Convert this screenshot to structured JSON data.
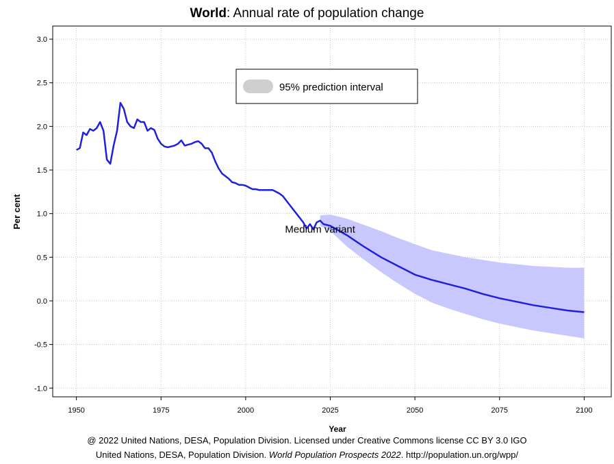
{
  "chart_data": {
    "type": "line",
    "title": {
      "region": "World",
      "separator": ":",
      "text": " Annual rate of population change"
    },
    "xlabel": "Year",
    "ylabel": "Per cent",
    "xlim": [
      1943,
      2108
    ],
    "ylim": [
      -1.1,
      3.15
    ],
    "x_ticks": [
      1950,
      1975,
      2000,
      2025,
      2050,
      2075,
      2100
    ],
    "y_ticks": [
      -1.0,
      -0.5,
      0.0,
      0.5,
      1.0,
      1.5,
      2.0,
      2.5,
      3.0
    ],
    "y_tick_labels": [
      "-1.0",
      "-0.5",
      "0.0",
      "0.5",
      "1.0",
      "1.5",
      "2.0",
      "2.5",
      "3.0"
    ],
    "grid": true,
    "colors": {
      "line": "#1f1fe0",
      "band": "#c8c8ff",
      "legend_swatch": "#cfcfcf",
      "grid": "#c8c8c8"
    },
    "legend": {
      "position": "top-center",
      "entries": [
        {
          "label": "95% prediction interval"
        }
      ]
    },
    "annotation": {
      "text": "Medium variant",
      "x": 2022,
      "y": 0.82
    },
    "series": [
      {
        "name": "Medium variant",
        "x": [
          1950,
          1951,
          1952,
          1953,
          1954,
          1955,
          1956,
          1957,
          1958,
          1959,
          1960,
          1961,
          1962,
          1963,
          1964,
          1965,
          1966,
          1967,
          1968,
          1969,
          1970,
          1971,
          1972,
          1973,
          1974,
          1975,
          1976,
          1977,
          1978,
          1979,
          1980,
          1981,
          1982,
          1983,
          1984,
          1985,
          1986,
          1987,
          1988,
          1989,
          1990,
          1991,
          1992,
          1993,
          1994,
          1995,
          1996,
          1997,
          1998,
          1999,
          2000,
          2001,
          2002,
          2003,
          2004,
          2005,
          2006,
          2007,
          2008,
          2009,
          2010,
          2011,
          2012,
          2013,
          2014,
          2015,
          2016,
          2017,
          2018,
          2019,
          2020,
          2021,
          2022,
          2023,
          2025,
          2030,
          2035,
          2040,
          2045,
          2050,
          2055,
          2060,
          2065,
          2070,
          2075,
          2080,
          2085,
          2090,
          2095,
          2100
        ],
        "values": [
          1.73,
          1.75,
          1.93,
          1.9,
          1.97,
          1.95,
          1.98,
          2.05,
          1.95,
          1.62,
          1.57,
          1.78,
          1.95,
          2.27,
          2.2,
          2.05,
          2.0,
          1.98,
          2.08,
          2.05,
          2.05,
          1.95,
          1.98,
          1.96,
          1.86,
          1.8,
          1.77,
          1.76,
          1.77,
          1.78,
          1.8,
          1.84,
          1.78,
          1.79,
          1.8,
          1.82,
          1.83,
          1.8,
          1.75,
          1.75,
          1.7,
          1.6,
          1.52,
          1.46,
          1.43,
          1.4,
          1.36,
          1.35,
          1.33,
          1.33,
          1.32,
          1.3,
          1.28,
          1.28,
          1.27,
          1.27,
          1.27,
          1.27,
          1.27,
          1.25,
          1.23,
          1.2,
          1.15,
          1.1,
          1.05,
          1.0,
          0.95,
          0.9,
          0.83,
          0.88,
          0.82,
          0.9,
          0.92,
          0.88,
          0.86,
          0.75,
          0.62,
          0.5,
          0.4,
          0.3,
          0.24,
          0.19,
          0.14,
          0.08,
          0.03,
          -0.01,
          -0.05,
          -0.08,
          -0.11,
          -0.13
        ]
      }
    ],
    "band": {
      "name": "95% prediction interval",
      "x": [
        2022,
        2025,
        2030,
        2035,
        2040,
        2045,
        2050,
        2055,
        2060,
        2065,
        2070,
        2075,
        2080,
        2085,
        2090,
        2095,
        2100
      ],
      "upper": [
        0.98,
        0.99,
        0.94,
        0.87,
        0.8,
        0.72,
        0.65,
        0.58,
        0.54,
        0.5,
        0.47,
        0.44,
        0.42,
        0.4,
        0.39,
        0.38,
        0.38
      ],
      "lower": [
        0.86,
        0.8,
        0.62,
        0.47,
        0.33,
        0.2,
        0.08,
        -0.02,
        -0.09,
        -0.15,
        -0.21,
        -0.26,
        -0.3,
        -0.34,
        -0.37,
        -0.4,
        -0.43
      ]
    }
  },
  "credits": {
    "line1": "@ 2022 United Nations, DESA, Population Division. Licensed under Creative Commons license CC BY 3.0 IGO",
    "line2_pre": "United Nations, DESA, Population Division. ",
    "line2_italic": "World Population Prospects 2022",
    "line2_post": ". http://population.un.org/wpp/"
  }
}
